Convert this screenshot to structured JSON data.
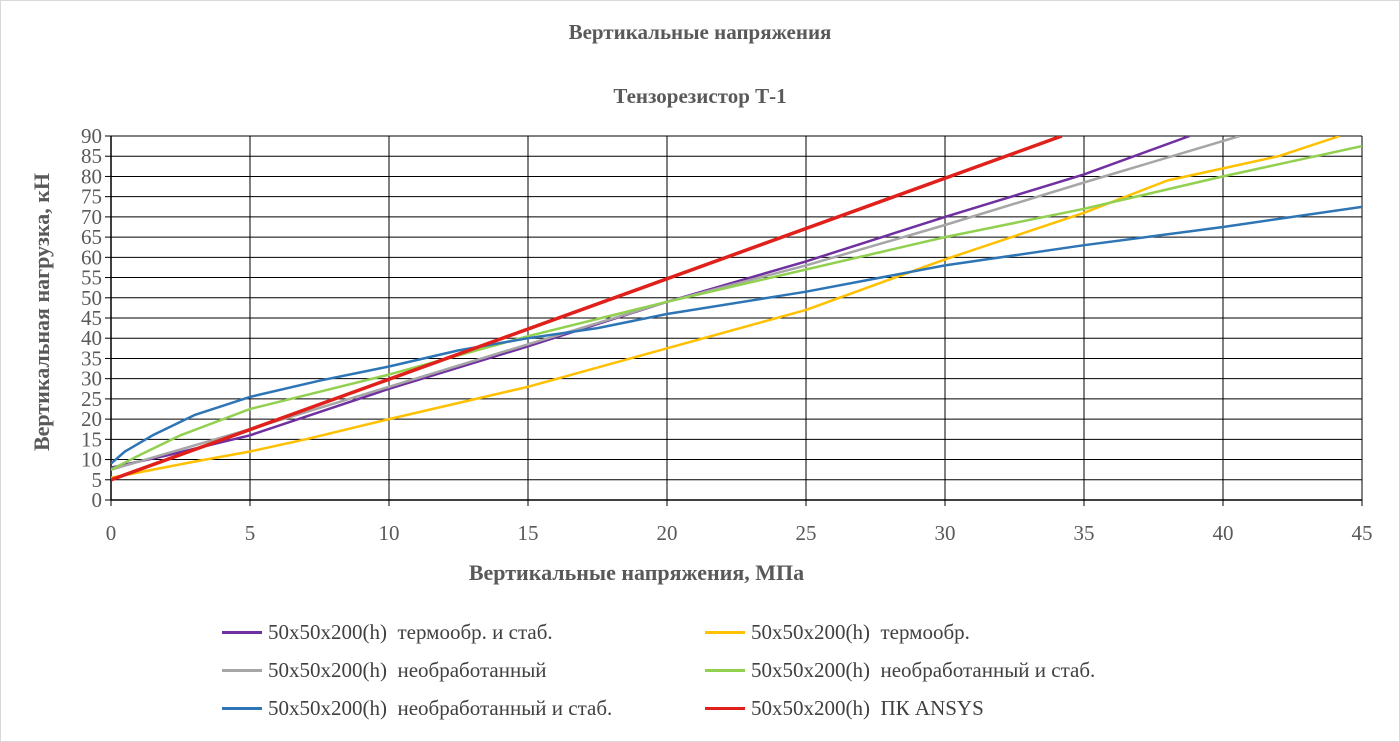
{
  "chart_data": {
    "type": "line",
    "title": "Вертикальные напряжения",
    "subtitle": "Тензорезистор Т-1",
    "xlabel": "Вертикальные напряжения, МПа",
    "ylabel": "Вертикальная нагрузка, кН",
    "xlim": [
      0,
      45
    ],
    "ylim": [
      0,
      90
    ],
    "xticks": [
      0,
      5,
      10,
      15,
      20,
      25,
      30,
      35,
      40,
      45
    ],
    "yticks": [
      0,
      5,
      10,
      15,
      20,
      25,
      30,
      35,
      40,
      45,
      50,
      55,
      60,
      65,
      70,
      75,
      80,
      85,
      90
    ],
    "grid": true,
    "legend_position": "bottom",
    "series": [
      {
        "name": "50x50x200(h)  термообр. и стаб.",
        "color": "#7030a0",
        "points": [
          [
            0,
            8
          ],
          [
            2,
            11
          ],
          [
            5,
            16
          ],
          [
            10,
            27.5
          ],
          [
            15,
            38
          ],
          [
            20,
            49
          ],
          [
            25,
            59
          ],
          [
            30,
            70
          ],
          [
            35,
            80.5
          ],
          [
            38.8,
            90
          ]
        ]
      },
      {
        "name": "50x50x200(h)  термообр.",
        "color": "#ffc000",
        "points": [
          [
            0,
            5.5
          ],
          [
            3,
            9.5
          ],
          [
            5,
            12
          ],
          [
            7,
            15
          ],
          [
            10,
            20
          ],
          [
            15,
            28
          ],
          [
            20,
            37.5
          ],
          [
            25,
            47
          ],
          [
            30,
            59.5
          ],
          [
            35,
            71
          ],
          [
            38,
            79
          ],
          [
            40,
            82
          ],
          [
            42,
            85
          ],
          [
            44.2,
            90
          ]
        ]
      },
      {
        "name": "50x50x200(h)  необработанный",
        "color": "#a6a6a6",
        "points": [
          [
            0,
            7.5
          ],
          [
            5,
            17.5
          ],
          [
            10,
            28
          ],
          [
            15,
            38.5
          ],
          [
            20,
            49
          ],
          [
            25,
            58
          ],
          [
            30,
            68
          ],
          [
            35,
            78.5
          ],
          [
            40.6,
            90
          ]
        ]
      },
      {
        "name": "50x50x200(h)  необработанный и стаб.",
        "color": "#92d050",
        "points": [
          [
            0,
            7.5
          ],
          [
            1,
            11
          ],
          [
            2.5,
            16
          ],
          [
            5,
            22.5
          ],
          [
            10,
            31
          ],
          [
            15,
            40.5
          ],
          [
            20,
            49
          ],
          [
            25,
            57
          ],
          [
            30,
            65
          ],
          [
            35,
            72
          ],
          [
            40,
            80
          ],
          [
            45,
            87.5
          ]
        ]
      },
      {
        "name": "50x50x200(h)  необработанный и стаб.",
        "color": "#2e75b6",
        "points": [
          [
            0,
            9
          ],
          [
            0.5,
            12
          ],
          [
            1.5,
            16
          ],
          [
            3,
            21
          ],
          [
            5,
            25.5
          ],
          [
            7.5,
            29.5
          ],
          [
            10,
            33
          ],
          [
            12.5,
            37
          ],
          [
            15,
            40
          ],
          [
            17.5,
            42.5
          ],
          [
            20,
            46
          ],
          [
            25,
            51.5
          ],
          [
            30,
            58
          ],
          [
            35,
            63
          ],
          [
            40,
            67.5
          ],
          [
            45,
            72.5
          ]
        ]
      },
      {
        "name": "50x50x200(h)  ПК ANSYS",
        "color": "#e0201b",
        "points": [
          [
            0,
            5
          ],
          [
            34.2,
            90
          ]
        ]
      }
    ]
  }
}
